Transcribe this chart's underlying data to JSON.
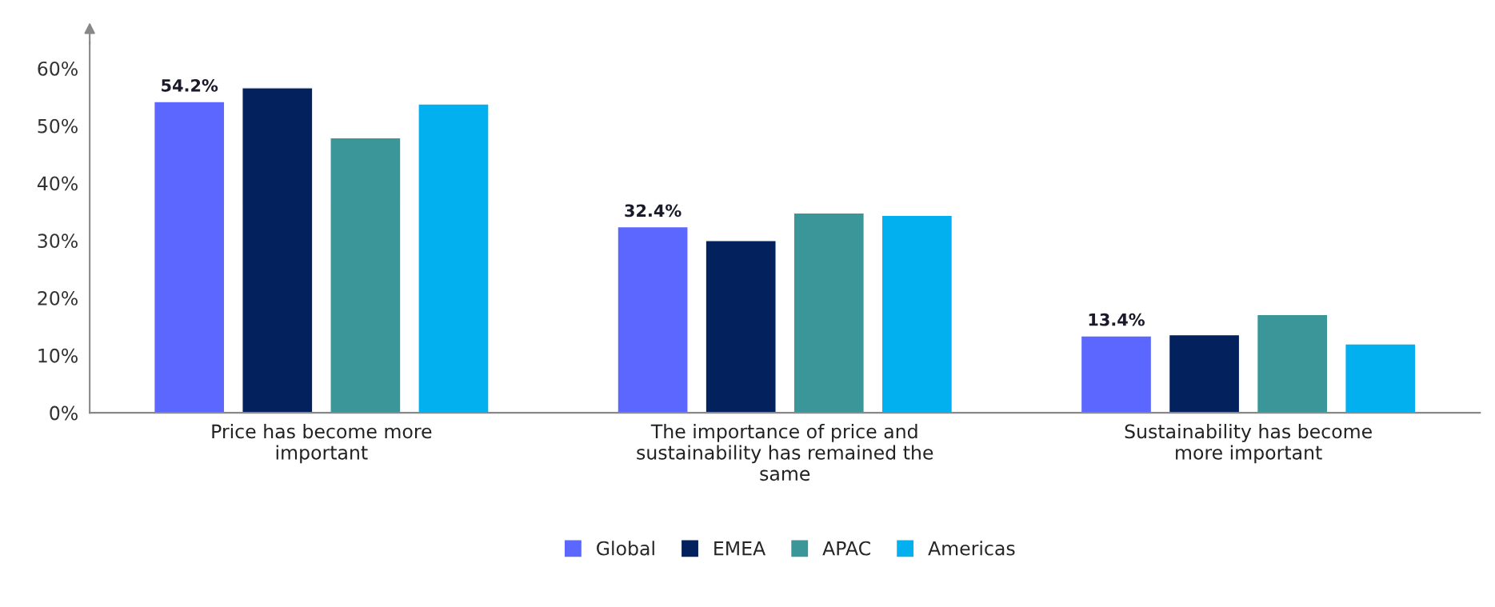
{
  "chart_data": {
    "type": "bar",
    "categories": [
      "Price has become more important",
      "The importance of price and sustainability has remained the same",
      "Sustainability has become more important"
    ],
    "series": [
      {
        "name": "Global",
        "color": "#5b67fe",
        "values": [
          54.2,
          32.4,
          13.4
        ],
        "value_labels": [
          "54.2%",
          "32.4%",
          "13.4%"
        ]
      },
      {
        "name": "EMEA",
        "color": "#03215d",
        "values": [
          56.6,
          30.0,
          13.6
        ]
      },
      {
        "name": "APAC",
        "color": "#3a9699",
        "values": [
          47.9,
          34.8,
          17.1
        ]
      },
      {
        "name": "Americas",
        "color": "#03b0ef",
        "values": [
          53.8,
          34.4,
          12.0
        ]
      }
    ],
    "ylim": [
      0,
      64.5
    ],
    "yticks": [
      {
        "value": 0,
        "label": "0%"
      },
      {
        "value": 10,
        "label": "10%"
      },
      {
        "value": 20,
        "label": "20%"
      },
      {
        "value": 30,
        "label": "30%"
      },
      {
        "value": 40,
        "label": "40%"
      },
      {
        "value": 50,
        "label": "50%"
      },
      {
        "value": 60,
        "label": "60%"
      }
    ],
    "grid": false,
    "legend": "bottom"
  }
}
